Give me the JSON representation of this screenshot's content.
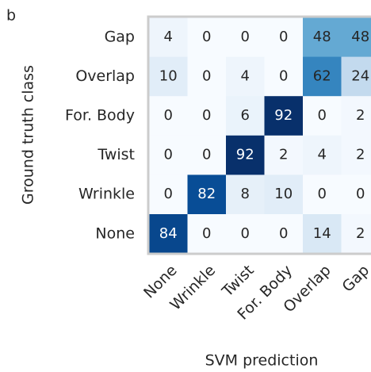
{
  "chart_data": {
    "type": "heatmap",
    "panel_label": "b",
    "xlabel": "SVM prediction",
    "ylabel": "Ground truth class",
    "x_categories": [
      "None",
      "Wrinkle",
      "Twist",
      "For. Body",
      "Overlap",
      "Gap"
    ],
    "y_categories": [
      "Gap",
      "Overlap",
      "For. Body",
      "Twist",
      "Wrinkle",
      "None"
    ],
    "values": [
      [
        4,
        0,
        0,
        0,
        48,
        48
      ],
      [
        10,
        0,
        4,
        0,
        62,
        24
      ],
      [
        0,
        0,
        6,
        92,
        0,
        2
      ],
      [
        0,
        0,
        92,
        2,
        4,
        2
      ],
      [
        0,
        82,
        8,
        10,
        0,
        0
      ],
      [
        84,
        0,
        0,
        0,
        14,
        2
      ]
    ],
    "colormap": "Blues"
  }
}
